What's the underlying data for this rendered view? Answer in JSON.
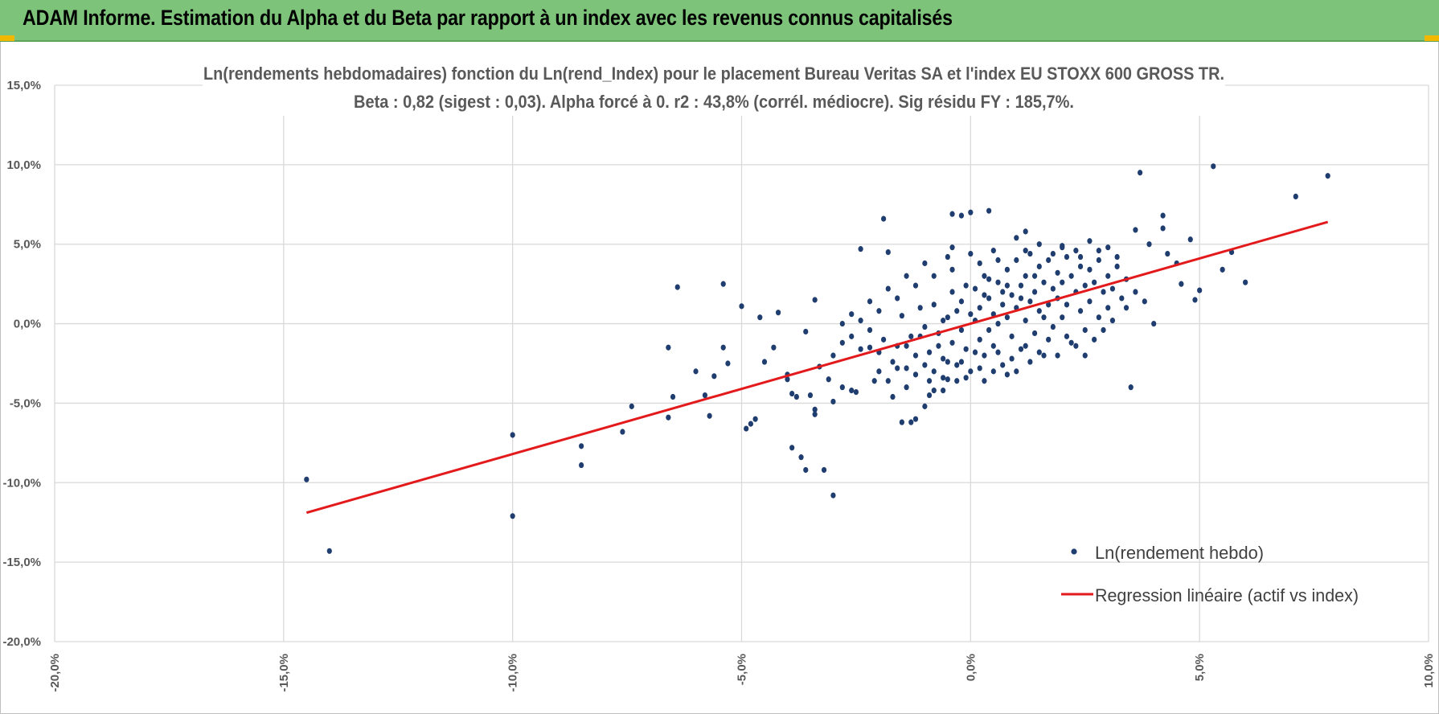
{
  "header": {
    "title": "ADAM Informe. Estimation du Alpha et du Beta par rapport à un index avec les revenus connus capitalisés"
  },
  "chart_data": {
    "type": "scatter",
    "title": "Ln(rendements hebdomadaires) fonction du Ln(rend_Index) pour le placement Bureau Veritas SA et l'index EU STOXX 600 GROSS TR.",
    "subtitle": "Beta : 0,82 (sigest : 0,03). Alpha forcé à 0. r2 : 43,8% (corrél. médiocre). Sig résidu FY : 185,7%.",
    "xlabel": "",
    "ylabel": "",
    "xlim": [
      -0.2,
      0.1
    ],
    "ylim": [
      -0.2,
      0.15
    ],
    "x_ticks": [
      -0.2,
      -0.15,
      -0.1,
      -0.05,
      0.0,
      0.05,
      0.1
    ],
    "x_tick_labels": [
      "-20,0%",
      "-15,0%",
      "-10,0%",
      "-5,0%",
      "0,0%",
      "5,0%",
      "10,0%"
    ],
    "y_ticks": [
      0.15,
      0.1,
      0.05,
      0.0,
      -0.05,
      -0.1,
      -0.15,
      -0.2
    ],
    "y_tick_labels": [
      "15,0%",
      "10,0%",
      "5,0%",
      "0,0%",
      "-5,0%",
      "-10,0%",
      "-15,0%",
      "-20,0%"
    ],
    "grid": true,
    "legend_position": "bottom-right",
    "colors": {
      "points": "#1f3d6e",
      "regression": "#e31a1c",
      "grid": "#d9d9d9"
    },
    "series": [
      {
        "name": "Ln(rendement hebdo)",
        "type": "scatter",
        "points": [
          [
            -0.145,
            -0.098
          ],
          [
            -0.14,
            -0.143
          ],
          [
            -0.1,
            -0.121
          ],
          [
            -0.1,
            -0.07
          ],
          [
            -0.085,
            -0.077
          ],
          [
            -0.085,
            -0.089
          ],
          [
            -0.076,
            -0.068
          ],
          [
            -0.074,
            -0.052
          ],
          [
            -0.066,
            -0.059
          ],
          [
            -0.065,
            -0.046
          ],
          [
            -0.064,
            0.023
          ],
          [
            -0.066,
            -0.015
          ],
          [
            -0.06,
            -0.03
          ],
          [
            -0.058,
            -0.045
          ],
          [
            -0.057,
            -0.058
          ],
          [
            -0.056,
            -0.033
          ],
          [
            -0.054,
            -0.015
          ],
          [
            -0.054,
            0.025
          ],
          [
            -0.053,
            -0.025
          ],
          [
            -0.05,
            0.011
          ],
          [
            -0.049,
            -0.066
          ],
          [
            -0.048,
            -0.063
          ],
          [
            -0.047,
            -0.06
          ],
          [
            -0.046,
            0.004
          ],
          [
            -0.045,
            -0.024
          ],
          [
            -0.043,
            -0.015
          ],
          [
            -0.042,
            0.007
          ],
          [
            -0.04,
            -0.035
          ],
          [
            -0.04,
            -0.032
          ],
          [
            -0.039,
            -0.044
          ],
          [
            -0.039,
            -0.078
          ],
          [
            -0.038,
            -0.046
          ],
          [
            -0.037,
            -0.084
          ],
          [
            -0.036,
            -0.092
          ],
          [
            -0.036,
            -0.005
          ],
          [
            -0.035,
            -0.045
          ],
          [
            -0.034,
            0.015
          ],
          [
            -0.034,
            -0.054
          ],
          [
            -0.034,
            -0.057
          ],
          [
            -0.033,
            -0.027
          ],
          [
            -0.032,
            -0.092
          ],
          [
            -0.031,
            -0.035
          ],
          [
            -0.03,
            -0.049
          ],
          [
            -0.03,
            -0.108
          ],
          [
            -0.028,
            -0.04
          ],
          [
            -0.026,
            -0.042
          ],
          [
            -0.025,
            -0.043
          ],
          [
            -0.024,
            0.047
          ],
          [
            -0.022,
            -0.015
          ],
          [
            -0.021,
            -0.036
          ],
          [
            -0.02,
            -0.03
          ],
          [
            -0.019,
            0.066
          ],
          [
            -0.018,
            0.045
          ],
          [
            -0.017,
            -0.046
          ],
          [
            -0.015,
            -0.062
          ],
          [
            -0.013,
            -0.062
          ],
          [
            -0.012,
            -0.06
          ],
          [
            -0.01,
            -0.052
          ],
          [
            -0.009,
            -0.045
          ],
          [
            -0.008,
            -0.042
          ],
          [
            -0.006,
            -0.042
          ],
          [
            -0.005,
            -0.035
          ],
          [
            -0.004,
            0.069
          ],
          [
            -0.004,
            0.048
          ],
          [
            -0.002,
            0.068
          ],
          [
            0.0,
            0.07
          ],
          [
            0.004,
            0.071
          ],
          [
            0.012,
            0.058
          ],
          [
            0.02,
            0.049
          ],
          [
            0.026,
            0.052
          ],
          [
            0.03,
            0.048
          ],
          [
            0.035,
            -0.04
          ],
          [
            0.036,
            0.059
          ],
          [
            0.037,
            0.095
          ],
          [
            0.039,
            0.05
          ],
          [
            0.04,
            0.0
          ],
          [
            0.042,
            0.068
          ],
          [
            0.042,
            0.06
          ],
          [
            0.043,
            0.044
          ],
          [
            0.045,
            0.038
          ],
          [
            0.046,
            0.025
          ],
          [
            0.048,
            0.053
          ],
          [
            0.049,
            0.015
          ],
          [
            0.05,
            0.021
          ],
          [
            0.053,
            0.099
          ],
          [
            0.055,
            0.034
          ],
          [
            0.057,
            0.045
          ],
          [
            0.06,
            0.026
          ],
          [
            0.071,
            0.08
          ],
          [
            0.078,
            0.093
          ],
          [
            -0.03,
            -0.02
          ],
          [
            -0.028,
            -0.012
          ],
          [
            -0.026,
            -0.008
          ],
          [
            -0.024,
            -0.016
          ],
          [
            -0.022,
            -0.004
          ],
          [
            -0.02,
            -0.018
          ],
          [
            -0.019,
            -0.01
          ],
          [
            -0.017,
            -0.024
          ],
          [
            -0.016,
            -0.014
          ],
          [
            -0.015,
            0.005
          ],
          [
            -0.014,
            -0.028
          ],
          [
            -0.013,
            -0.008
          ],
          [
            -0.012,
            -0.02
          ],
          [
            -0.011,
            0.01
          ],
          [
            -0.01,
            -0.002
          ],
          [
            -0.009,
            -0.018
          ],
          [
            -0.008,
            -0.03
          ],
          [
            -0.008,
            0.012
          ],
          [
            -0.007,
            -0.006
          ],
          [
            -0.006,
            -0.022
          ],
          [
            -0.005,
            0.004
          ],
          [
            -0.004,
            -0.012
          ],
          [
            -0.004,
            0.02
          ],
          [
            -0.003,
            -0.026
          ],
          [
            -0.002,
            -0.004
          ],
          [
            -0.002,
            0.014
          ],
          [
            -0.001,
            -0.016
          ],
          [
            0.0,
            0.006
          ],
          [
            0.0,
            -0.03
          ],
          [
            0.001,
            0.002
          ],
          [
            0.001,
            0.022
          ],
          [
            0.002,
            -0.01
          ],
          [
            0.002,
            0.01
          ],
          [
            0.003,
            -0.02
          ],
          [
            0.003,
            0.03
          ],
          [
            0.004,
            -0.004
          ],
          [
            0.004,
            0.016
          ],
          [
            0.005,
            0.006
          ],
          [
            0.005,
            -0.014
          ],
          [
            0.006,
            0.026
          ],
          [
            0.006,
            0.0
          ],
          [
            0.007,
            0.012
          ],
          [
            0.007,
            -0.026
          ],
          [
            0.008,
            0.034
          ],
          [
            0.008,
            0.004
          ],
          [
            0.009,
            0.018
          ],
          [
            0.009,
            -0.008
          ],
          [
            0.01,
            0.04
          ],
          [
            0.01,
            0.01
          ],
          [
            0.011,
            0.024
          ],
          [
            0.011,
            -0.016
          ],
          [
            0.012,
            0.03
          ],
          [
            0.012,
            0.002
          ],
          [
            0.013,
            0.014
          ],
          [
            0.013,
            0.044
          ],
          [
            0.014,
            0.02
          ],
          [
            0.014,
            -0.006
          ],
          [
            0.015,
            0.036
          ],
          [
            0.015,
            0.008
          ],
          [
            0.016,
            0.026
          ],
          [
            0.016,
            -0.02
          ],
          [
            0.017,
            0.012
          ],
          [
            0.017,
            0.04
          ],
          [
            0.018,
            0.022
          ],
          [
            0.018,
            -0.002
          ],
          [
            0.019,
            0.032
          ],
          [
            0.019,
            0.016
          ],
          [
            0.02,
            0.004
          ],
          [
            0.02,
            0.026
          ],
          [
            0.021,
            0.042
          ],
          [
            0.021,
            0.012
          ],
          [
            0.022,
            -0.012
          ],
          [
            0.022,
            0.03
          ],
          [
            0.023,
            0.02
          ],
          [
            0.023,
            0.046
          ],
          [
            0.024,
            0.008
          ],
          [
            0.024,
            0.036
          ],
          [
            0.025,
            0.024
          ],
          [
            0.025,
            -0.004
          ],
          [
            0.026,
            0.034
          ],
          [
            0.026,
            0.014
          ],
          [
            0.027,
            0.026
          ],
          [
            0.028,
            0.04
          ],
          [
            0.028,
            0.004
          ],
          [
            0.029,
            0.02
          ],
          [
            0.03,
            0.03
          ],
          [
            0.03,
            0.01
          ],
          [
            0.031,
            0.022
          ],
          [
            0.032,
            0.036
          ],
          [
            0.033,
            0.016
          ],
          [
            0.034,
            0.028
          ],
          [
            -0.018,
            -0.036
          ],
          [
            -0.016,
            -0.028
          ],
          [
            -0.014,
            -0.04
          ],
          [
            -0.012,
            -0.032
          ],
          [
            -0.01,
            -0.026
          ],
          [
            -0.009,
            -0.036
          ],
          [
            -0.007,
            -0.014
          ],
          [
            -0.006,
            -0.034
          ],
          [
            -0.005,
            -0.024
          ],
          [
            -0.003,
            -0.036
          ],
          [
            -0.002,
            -0.024
          ],
          [
            -0.001,
            -0.034
          ],
          [
            0.001,
            -0.018
          ],
          [
            0.002,
            -0.028
          ],
          [
            0.003,
            -0.036
          ],
          [
            0.005,
            -0.03
          ],
          [
            0.006,
            -0.018
          ],
          [
            0.008,
            -0.032
          ],
          [
            0.009,
            -0.022
          ],
          [
            0.01,
            -0.03
          ],
          [
            0.012,
            -0.014
          ],
          [
            0.013,
            -0.024
          ],
          [
            0.015,
            -0.018
          ],
          [
            0.017,
            -0.01
          ],
          [
            0.019,
            -0.02
          ],
          [
            0.021,
            -0.008
          ],
          [
            0.023,
            -0.014
          ],
          [
            0.025,
            -0.02
          ],
          [
            0.027,
            -0.01
          ],
          [
            0.029,
            -0.004
          ],
          [
            0.031,
            0.002
          ],
          [
            0.02,
            0.048
          ],
          [
            0.015,
            0.05
          ],
          [
            0.01,
            0.054
          ],
          [
            0.005,
            0.046
          ],
          [
            0.0,
            0.044
          ],
          [
            -0.005,
            0.042
          ],
          [
            -0.01,
            0.038
          ],
          [
            -0.014,
            0.03
          ],
          [
            -0.018,
            0.022
          ],
          [
            -0.022,
            0.014
          ],
          [
            -0.026,
            0.006
          ],
          [
            -0.028,
            0.0
          ],
          [
            -0.024,
            0.002
          ],
          [
            -0.02,
            0.008
          ],
          [
            -0.016,
            0.016
          ],
          [
            -0.012,
            0.024
          ],
          [
            -0.008,
            0.03
          ],
          [
            -0.004,
            0.034
          ],
          [
            0.002,
            0.038
          ],
          [
            0.006,
            0.04
          ],
          [
            0.012,
            0.046
          ],
          [
            0.018,
            0.044
          ],
          [
            0.024,
            0.042
          ],
          [
            0.028,
            0.046
          ],
          [
            0.032,
            0.042
          ],
          [
            0.034,
            0.01
          ],
          [
            0.036,
            0.02
          ],
          [
            0.038,
            0.014
          ],
          [
            -0.001,
            0.024
          ],
          [
            0.003,
            0.018
          ],
          [
            0.007,
            0.02
          ],
          [
            0.011,
            0.016
          ],
          [
            0.004,
            0.028
          ],
          [
            0.008,
            0.024
          ],
          [
            -0.003,
            0.008
          ],
          [
            -0.006,
            0.002
          ],
          [
            -0.011,
            -0.008
          ],
          [
            -0.014,
            -0.014
          ],
          [
            0.016,
            0.004
          ],
          [
            0.014,
            0.03
          ]
        ]
      },
      {
        "name": "Regression linéaire (actif vs index)",
        "type": "line",
        "x": [
          -0.145,
          0.078
        ],
        "y": [
          -0.1189,
          0.064
        ]
      }
    ]
  }
}
